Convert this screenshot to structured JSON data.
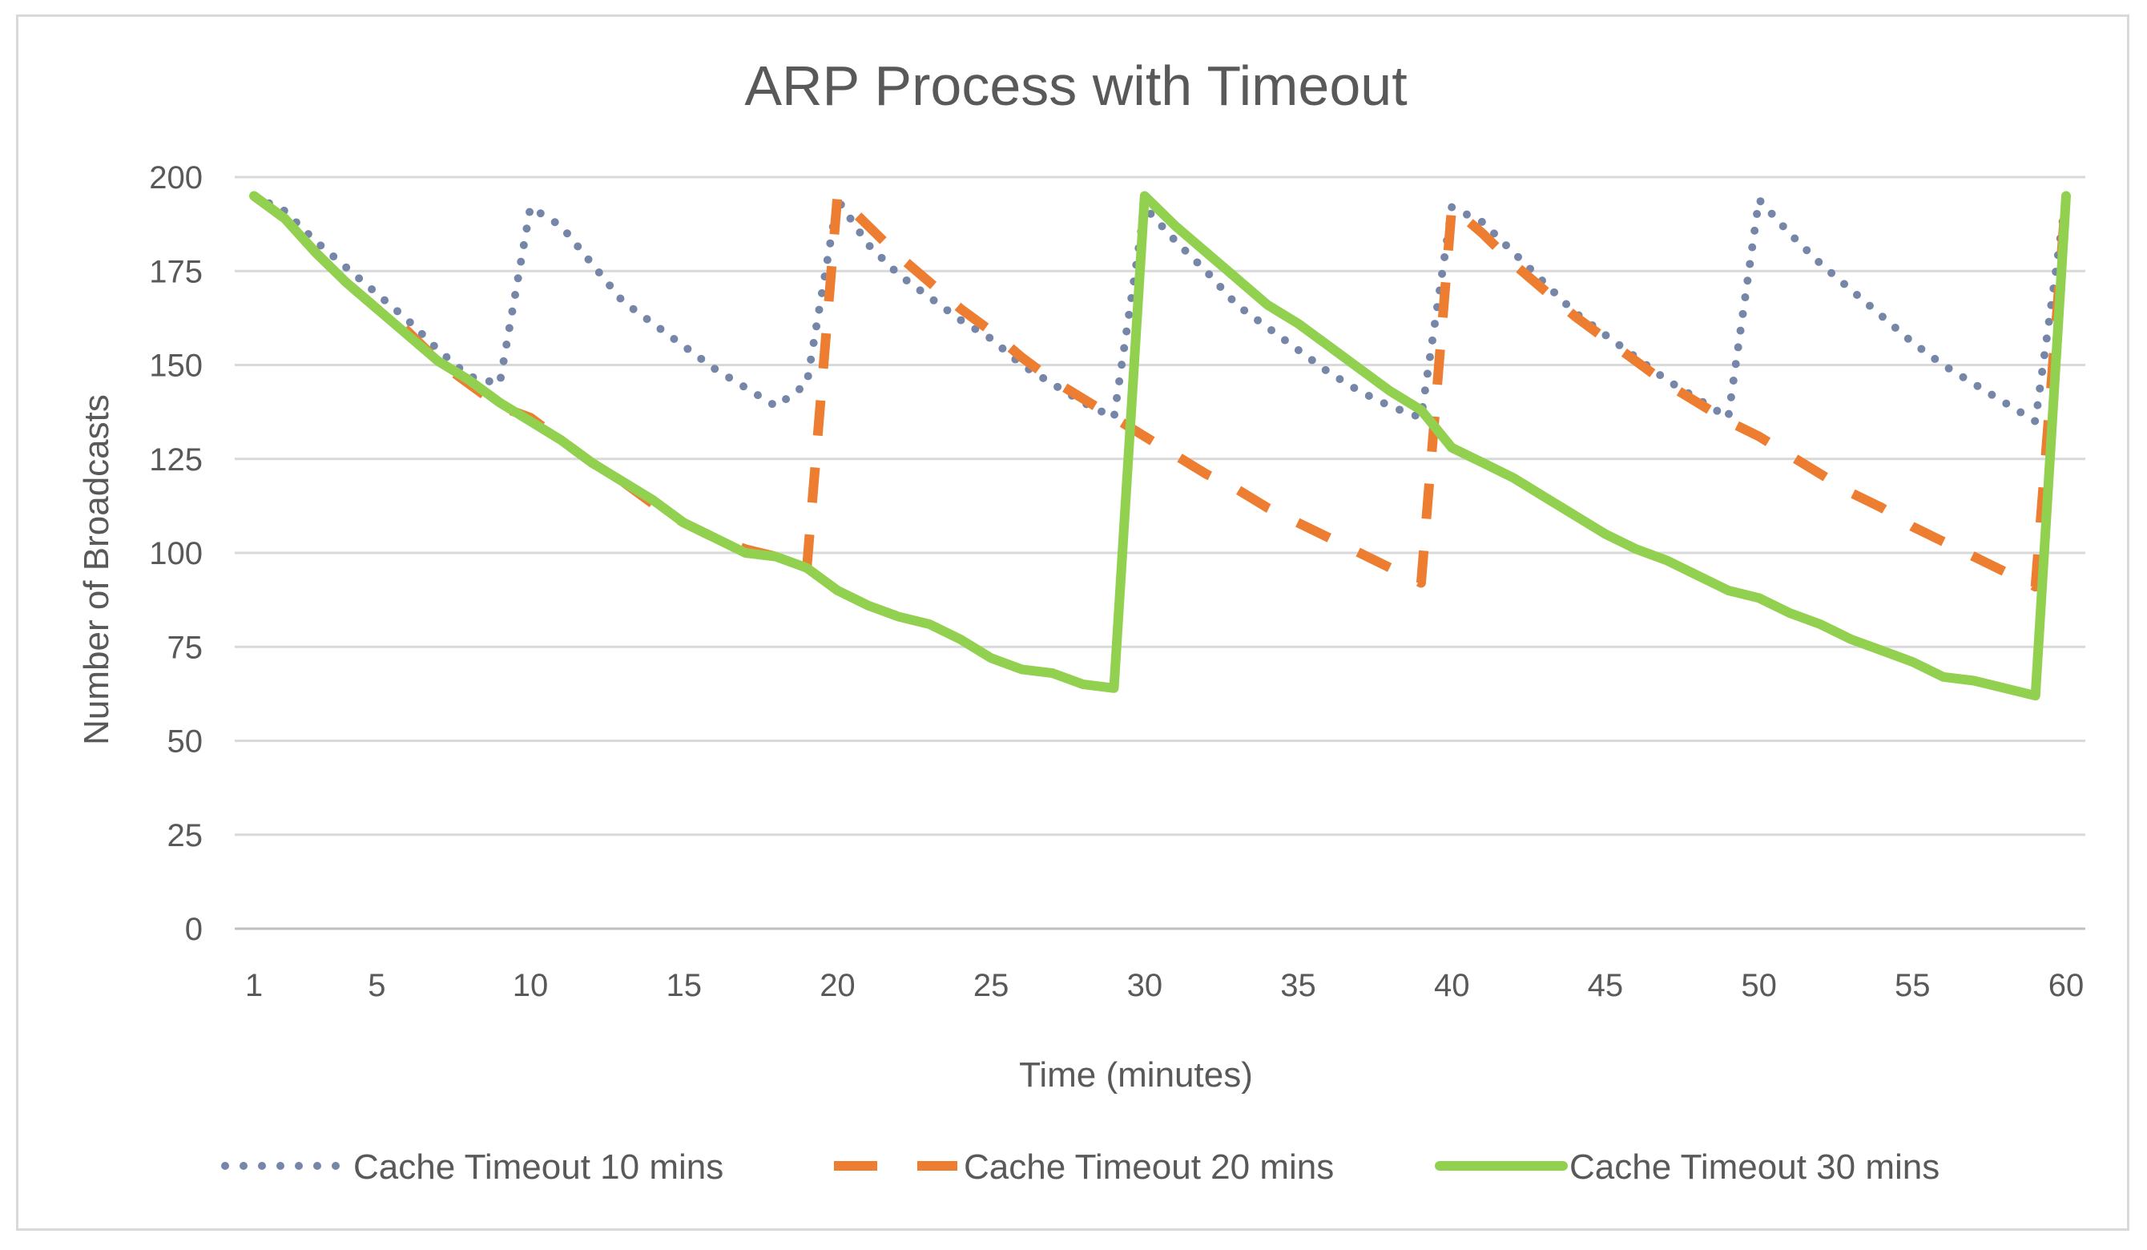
{
  "chart_data": {
    "type": "line",
    "title": "ARP Process with Timeout",
    "xlabel": "Time (minutes)",
    "ylabel": "Number of Broadcasts",
    "ylim": [
      0,
      200
    ],
    "xlim": [
      1,
      60
    ],
    "x_ticks": [
      1,
      5,
      10,
      15,
      20,
      25,
      30,
      35,
      40,
      45,
      50,
      55,
      60
    ],
    "y_ticks": [
      0,
      25,
      50,
      75,
      100,
      125,
      150,
      175,
      200
    ],
    "grid": true,
    "legend_position": "bottom",
    "series": [
      {
        "name": "Cache Timeout 10 mins",
        "color": "#7586a8",
        "style": "dotted",
        "points": [
          [
            1,
            195
          ],
          [
            2,
            191
          ],
          [
            3,
            183
          ],
          [
            4,
            176
          ],
          [
            5,
            169
          ],
          [
            6,
            162
          ],
          [
            7,
            154
          ],
          [
            8,
            147
          ],
          [
            9,
            145
          ],
          [
            10,
            192
          ],
          [
            11,
            187
          ],
          [
            12,
            177
          ],
          [
            13,
            167
          ],
          [
            14,
            161
          ],
          [
            15,
            155
          ],
          [
            16,
            149
          ],
          [
            17,
            144
          ],
          [
            18,
            139
          ],
          [
            19,
            145
          ],
          [
            20,
            194
          ],
          [
            21,
            182
          ],
          [
            22,
            174
          ],
          [
            23,
            168
          ],
          [
            24,
            162
          ],
          [
            25,
            157
          ],
          [
            26,
            150
          ],
          [
            27,
            145
          ],
          [
            28,
            140
          ],
          [
            29,
            136
          ],
          [
            30,
            192
          ],
          [
            31,
            183
          ],
          [
            32,
            175
          ],
          [
            33,
            166
          ],
          [
            34,
            160
          ],
          [
            35,
            154
          ],
          [
            36,
            148
          ],
          [
            37,
            143
          ],
          [
            38,
            139
          ],
          [
            39,
            136
          ],
          [
            40,
            192
          ],
          [
            41,
            188
          ],
          [
            42,
            180
          ],
          [
            43,
            172
          ],
          [
            44,
            164
          ],
          [
            45,
            158
          ],
          [
            46,
            152
          ],
          [
            47,
            146
          ],
          [
            48,
            141
          ],
          [
            49,
            136
          ],
          [
            50,
            194
          ],
          [
            51,
            185
          ],
          [
            52,
            177
          ],
          [
            53,
            170
          ],
          [
            54,
            163
          ],
          [
            55,
            156
          ],
          [
            56,
            150
          ],
          [
            57,
            145
          ],
          [
            58,
            140
          ],
          [
            59,
            135
          ],
          [
            60,
            195
          ]
        ]
      },
      {
        "name": "Cache Timeout 20 mins",
        "color": "#ed7d31",
        "style": "dashed",
        "points": [
          [
            1,
            195
          ],
          [
            2,
            189
          ],
          [
            3,
            180
          ],
          [
            4,
            172
          ],
          [
            5,
            165
          ],
          [
            6,
            159
          ],
          [
            7,
            151
          ],
          [
            8,
            145
          ],
          [
            9,
            139
          ],
          [
            10,
            136
          ],
          [
            11,
            130
          ],
          [
            12,
            124
          ],
          [
            13,
            119
          ],
          [
            14,
            113
          ],
          [
            15,
            108
          ],
          [
            16,
            104
          ],
          [
            17,
            101
          ],
          [
            18,
            99
          ],
          [
            19,
            96
          ],
          [
            20,
            195
          ],
          [
            21,
            187
          ],
          [
            22,
            179
          ],
          [
            23,
            172
          ],
          [
            24,
            165
          ],
          [
            25,
            159
          ],
          [
            26,
            152
          ],
          [
            27,
            146
          ],
          [
            28,
            141
          ],
          [
            29,
            136
          ],
          [
            30,
            131
          ],
          [
            31,
            126
          ],
          [
            32,
            121
          ],
          [
            33,
            117
          ],
          [
            34,
            112
          ],
          [
            35,
            108
          ],
          [
            36,
            104
          ],
          [
            37,
            100
          ],
          [
            38,
            96
          ],
          [
            39,
            92
          ],
          [
            40,
            192
          ],
          [
            41,
            185
          ],
          [
            42,
            177
          ],
          [
            43,
            170
          ],
          [
            44,
            163
          ],
          [
            45,
            157
          ],
          [
            46,
            151
          ],
          [
            47,
            145
          ],
          [
            48,
            140
          ],
          [
            49,
            135
          ],
          [
            50,
            131
          ],
          [
            51,
            126
          ],
          [
            52,
            121
          ],
          [
            53,
            116
          ],
          [
            54,
            112
          ],
          [
            55,
            107
          ],
          [
            56,
            103
          ],
          [
            57,
            99
          ],
          [
            58,
            95
          ],
          [
            59,
            91
          ],
          [
            60,
            195
          ]
        ]
      },
      {
        "name": "Cache Timeout 30 mins",
        "color": "#92d050",
        "style": "solid",
        "points": [
          [
            1,
            195
          ],
          [
            2,
            189
          ],
          [
            3,
            180
          ],
          [
            4,
            172
          ],
          [
            5,
            165
          ],
          [
            6,
            158
          ],
          [
            7,
            151
          ],
          [
            8,
            146
          ],
          [
            9,
            140
          ],
          [
            10,
            135
          ],
          [
            11,
            130
          ],
          [
            12,
            124
          ],
          [
            13,
            119
          ],
          [
            14,
            114
          ],
          [
            15,
            108
          ],
          [
            16,
            104
          ],
          [
            17,
            100
          ],
          [
            18,
            99
          ],
          [
            19,
            96
          ],
          [
            20,
            90
          ],
          [
            21,
            86
          ],
          [
            22,
            83
          ],
          [
            23,
            81
          ],
          [
            24,
            77
          ],
          [
            25,
            72
          ],
          [
            26,
            69
          ],
          [
            27,
            68
          ],
          [
            28,
            65
          ],
          [
            29,
            64
          ],
          [
            30,
            195
          ],
          [
            31,
            187
          ],
          [
            32,
            180
          ],
          [
            33,
            173
          ],
          [
            34,
            166
          ],
          [
            35,
            161
          ],
          [
            36,
            155
          ],
          [
            37,
            149
          ],
          [
            38,
            143
          ],
          [
            39,
            138
          ],
          [
            40,
            128
          ],
          [
            41,
            124
          ],
          [
            42,
            120
          ],
          [
            43,
            115
          ],
          [
            44,
            110
          ],
          [
            45,
            105
          ],
          [
            46,
            101
          ],
          [
            47,
            98
          ],
          [
            48,
            94
          ],
          [
            49,
            90
          ],
          [
            50,
            88
          ],
          [
            51,
            84
          ],
          [
            52,
            81
          ],
          [
            53,
            77
          ],
          [
            54,
            74
          ],
          [
            55,
            71
          ],
          [
            56,
            67
          ],
          [
            57,
            66
          ],
          [
            58,
            64
          ],
          [
            59,
            62
          ],
          [
            60,
            195
          ]
        ]
      }
    ]
  }
}
